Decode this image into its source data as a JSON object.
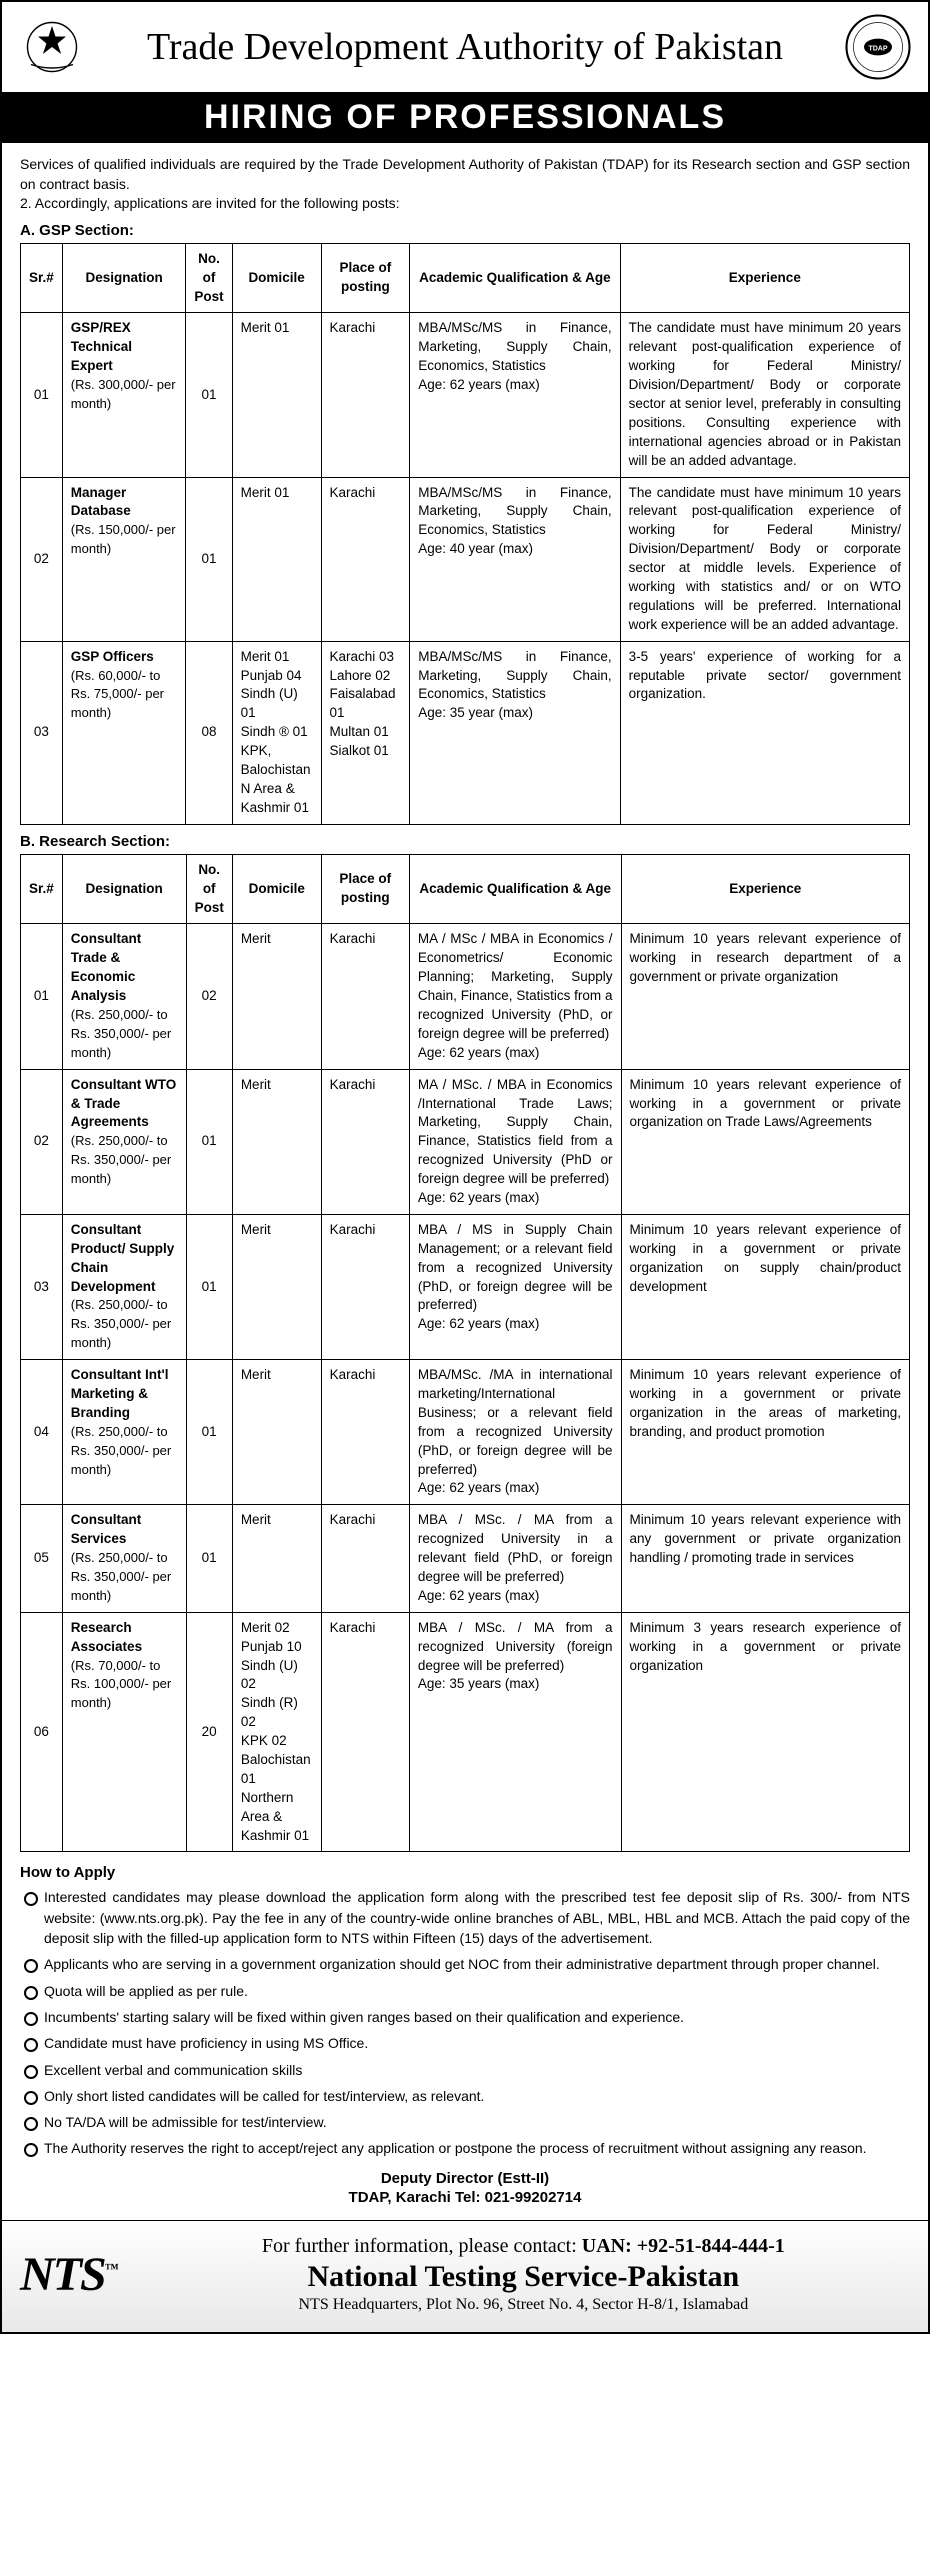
{
  "header": {
    "title": "Trade Development Authority of Pakistan",
    "banner": "HIRING OF PROFESSIONALS"
  },
  "intro": {
    "p1": "Services of qualified individuals are required by the Trade Development Authority of Pakistan (TDAP) for its Research section and GSP section on contract basis.",
    "p2": "2.   Accordingly, applications are invited for the following posts:"
  },
  "sectionA": {
    "label": "A. GSP Section:",
    "headers": [
      "Sr.#",
      "Designation",
      "No. of Post",
      "Domicile",
      "Place of posting",
      "Academic Qualification & Age",
      "Experience"
    ],
    "rows": [
      {
        "sr": "01",
        "designation": "GSP/REX Technical Expert",
        "salary": "(Rs. 300,000/- per month)",
        "no": "01",
        "domicile": "Merit 01",
        "place": "Karachi",
        "acad": "MBA/MSc/MS in Finance, Marketing, Supply Chain, Economics, Statistics\nAge: 62 years (max)",
        "exp": "The candidate must have minimum 20 years relevant post-qualification experience of working for Federal Ministry/ Division/Department/ Body or corporate sector at senior level, preferably in consulting positions. Consulting experience with international agencies abroad or in Pakistan will be an added advantage."
      },
      {
        "sr": "02",
        "designation": "Manager Database",
        "salary": "(Rs. 150,000/- per month)",
        "no": "01",
        "domicile": "Merit 01",
        "place": "Karachi",
        "acad": "MBA/MSc/MS in Finance, Marketing, Supply Chain, Economics, Statistics\nAge: 40 year (max)",
        "exp": "The candidate must have minimum 10 years relevant post-qualification experience of working for Federal Ministry/ Division/Department/ Body or corporate sector at middle levels. Experience of working with statistics and/ or on WTO regulations will be preferred. International work experience will be an added advantage."
      },
      {
        "sr": "03",
        "designation": "GSP Officers",
        "salary": "(Rs. 60,000/- to Rs. 75,000/- per month)",
        "no": "08",
        "domicile": "Merit 01\nPunjab 04\nSindh (U) 01\nSindh ® 01\nKPK, Balochistan N Area & Kashmir 01",
        "place": "Karachi 03\nLahore 02\nFaisalabad 01\nMultan 01\nSialkot 01",
        "acad": "MBA/MSc/MS in Finance, Marketing, Supply Chain, Economics, Statistics\nAge: 35 year (max)",
        "exp": "3-5 years' experience of working for a reputable private sector/ government organization."
      }
    ]
  },
  "sectionB": {
    "label": "B. Research Section:",
    "headers": [
      "Sr.#",
      "Designation",
      "No. of Post",
      "Domicile",
      "Place of posting",
      "Academic Qualification & Age",
      "Experience"
    ],
    "rows": [
      {
        "sr": "01",
        "designation": "Consultant Trade & Economic Analysis",
        "salary": "(Rs. 250,000/- to\nRs. 350,000/- per month)",
        "no": "02",
        "domicile": "Merit",
        "place": "Karachi",
        "acad": "MA / MSc / MBA in Economics / Econometrics/ Economic Planning; Marketing, Supply Chain, Finance, Statistics from a recognized University (PhD, or foreign degree will be preferred)\nAge: 62 years (max)",
        "exp": "Minimum 10 years relevant experience of working in research department of a government or private organization"
      },
      {
        "sr": "02",
        "designation": "Consultant WTO & Trade Agreements",
        "salary": "(Rs. 250,000/- to\nRs. 350,000/- per month)",
        "no": "01",
        "domicile": "Merit",
        "place": "Karachi",
        "acad": "MA / MSc. / MBA in Economics /International Trade Laws; Marketing, Supply Chain, Finance, Statistics field from a recognized University (PhD or foreign degree will be preferred)\nAge: 62 years (max)",
        "exp": "Minimum 10 years relevant experience of working in a government or private organization on Trade Laws/Agreements"
      },
      {
        "sr": "03",
        "designation": "Consultant Product/ Supply Chain Development",
        "salary": "(Rs. 250,000/- to Rs. 350,000/- per month)",
        "no": "01",
        "domicile": "Merit",
        "place": "Karachi",
        "acad": "MBA / MS in Supply Chain Management; or a relevant field from a recognized University (PhD, or foreign degree will be preferred)\nAge: 62 years (max)",
        "exp": "Minimum 10 years relevant experience of working in a government or private organization on supply chain/product development"
      },
      {
        "sr": "04",
        "designation": "Consultant Int'l Marketing & Branding",
        "salary": "(Rs. 250,000/- to Rs. 350,000/- per month)",
        "no": "01",
        "domicile": "Merit",
        "place": "Karachi",
        "acad": "MBA/MSc. /MA in international marketing/International Business; or a relevant field from a recognized University (PhD, or foreign degree will be preferred)\nAge: 62 years (max)",
        "exp": "Minimum 10 years relevant experience of working in a government or private organization in the areas of marketing, branding, and product promotion"
      },
      {
        "sr": "05",
        "designation": "Consultant Services",
        "salary": "(Rs. 250,000/- to Rs. 350,000/- per month)",
        "no": "01",
        "domicile": "Merit",
        "place": "Karachi",
        "acad": "MBA / MSc. / MA from a recognized University in a relevant field (PhD, or foreign degree will be preferred)\nAge: 62 years (max)",
        "exp": "Minimum 10 years relevant experience with any government or private organization handling / promoting trade in services"
      },
      {
        "sr": "06",
        "designation": "Research Associates",
        "salary": "(Rs. 70,000/- to Rs. 100,000/- per month)",
        "no": "20",
        "domicile": "Merit 02\nPunjab 10\nSindh (U) 02\nSindh (R) 02\nKPK 02\nBalochistan 01\nNorthern Area & Kashmir 01",
        "place": "Karachi",
        "acad": "MBA / MSc. / MA from a recognized University (foreign degree will be preferred)\nAge: 35 years (max)",
        "exp": "Minimum 3 years research experience of working in a government or private organization"
      }
    ]
  },
  "howto": {
    "title": "How to Apply",
    "items": [
      "Interested candidates may please download the application form along with the prescribed test fee deposit slip of Rs. 300/- from NTS website: (www.nts.org.pk). Pay the fee in any of the country-wide online branches of ABL, MBL, HBL and MCB. Attach the paid copy of the deposit slip with the filled-up application form to NTS within Fifteen (15) days of the advertisement.",
      "Applicants who are serving in a government organization should get NOC from their administrative department through proper channel.",
      "Quota will be applied as per rule.",
      "Incumbents' starting salary will be fixed within given ranges based on their qualification and experience.",
      "Candidate must have proficiency in using MS Office.",
      "Excellent verbal and communication skills",
      "Only short listed candidates will be called for test/interview, as relevant.",
      "No TA/DA will be admissible for test/interview.",
      "The Authority reserves the right to accept/reject any application or postpone the process of recruitment without assigning any reason."
    ]
  },
  "signature": {
    "line1": "Deputy Director (Estt-II)",
    "line2": "TDAP, Karachi Tel: 021-99202714"
  },
  "footer": {
    "logo": "NTS",
    "line1a": "For further information, please contact:",
    "line1b": "UAN: +92-51-844-444-1",
    "line2": "National Testing Service-Pakistan",
    "line3": "NTS Headquarters, Plot No. 96, Street No. 4, Sector H-8/1, Islamabad"
  }
}
